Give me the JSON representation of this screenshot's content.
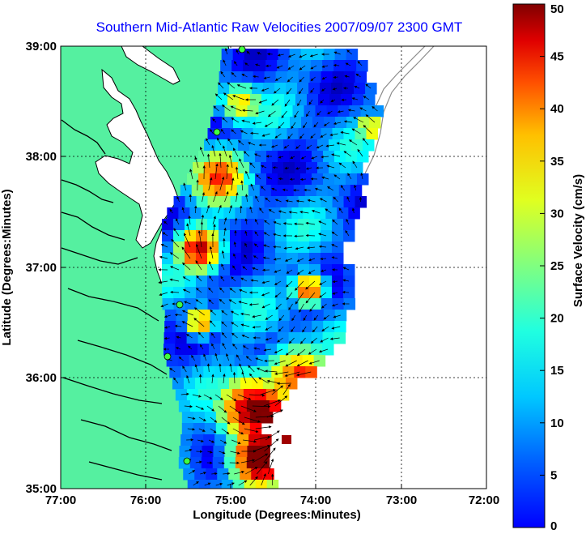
{
  "title": "Southern Mid-Atlantic Raw Velocities 2007/09/07 2300 GMT",
  "xlabel": "Longitude (Degrees:Minutes)",
  "ylabel": "Latitude (Degrees:Minutes)",
  "x_ticks": [
    "77:00",
    "76:00",
    "75:00",
    "74:00",
    "73:00",
    "72:00"
  ],
  "y_ticks": [
    "39:00",
    "38:00",
    "37:00",
    "36:00",
    "35:00"
  ],
  "colorbar": {
    "label": "Surface Velocity (cm/s)",
    "ticks": [
      "0",
      "5",
      "10",
      "15",
      "20",
      "25",
      "30",
      "35",
      "40",
      "45",
      "50"
    ],
    "range": [
      0,
      50
    ]
  },
  "colors": {
    "land": "#55f0a0",
    "title": "#0000ff",
    "water": "#ffffff"
  }
}
